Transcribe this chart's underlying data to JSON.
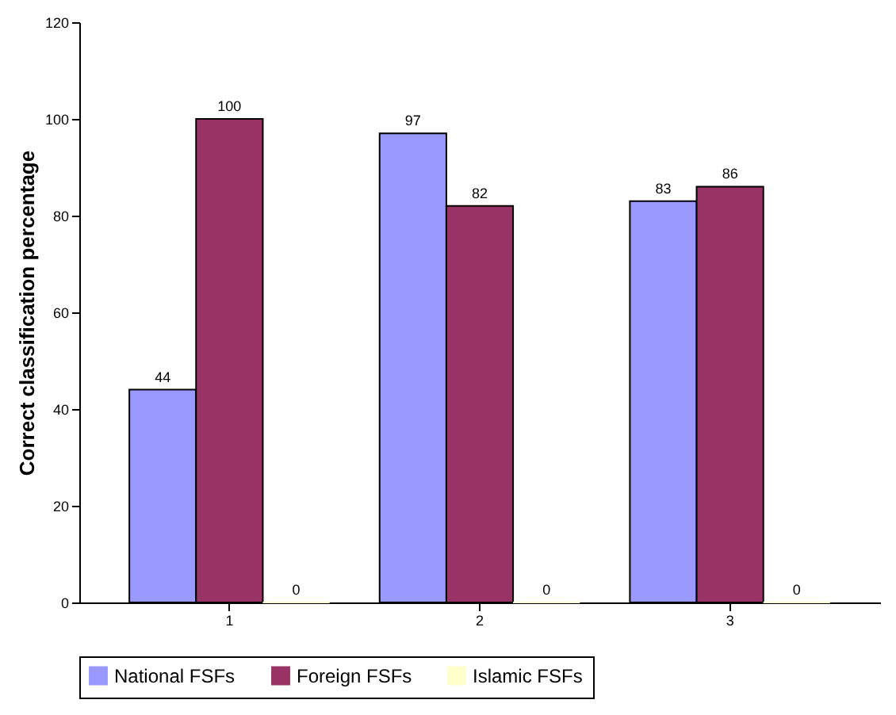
{
  "chart_data": {
    "type": "bar",
    "ylabel": "Correct classification percentage",
    "categories": [
      "1",
      "2",
      "3"
    ],
    "series": [
      {
        "name": "National FSFs",
        "color": "#9999ff",
        "values": [
          44,
          97,
          83
        ]
      },
      {
        "name": "Foreign FSFs",
        "color": "#993366",
        "values": [
          100,
          82,
          86
        ]
      },
      {
        "name": "Islamic FSFs",
        "color": "#ffffcc",
        "values": [
          0,
          0,
          0
        ]
      }
    ],
    "ylim": [
      0,
      120
    ],
    "yticks": [
      0,
      20,
      40,
      60,
      80,
      100,
      120
    ],
    "grid": false,
    "legend": "bottom",
    "data_labels": true
  }
}
